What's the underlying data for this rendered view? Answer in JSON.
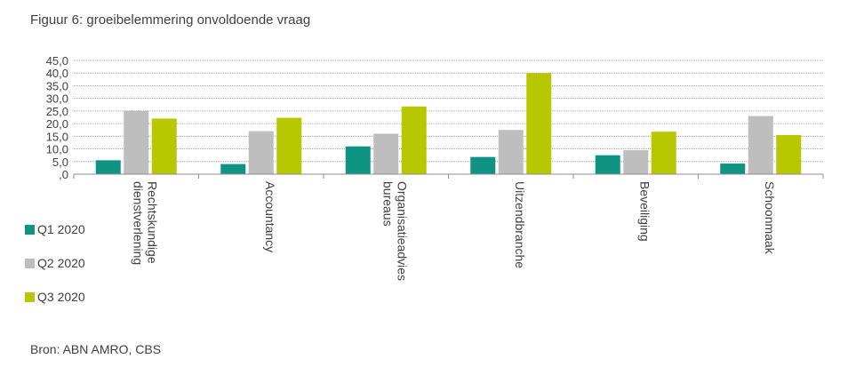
{
  "title": "Figuur 6: groeibelemmering onvoldoende vraag",
  "source": "Bron: ABN AMRO, CBS",
  "colors": {
    "q1": "#0f9484",
    "q2": "#bebebf",
    "q3": "#b7c700",
    "grid": "#a6a6a6",
    "axis": "#8c8c8c"
  },
  "chart_data": {
    "type": "bar",
    "title": "Figuur 6: groeibelemmering onvoldoende vraag",
    "xlabel": "",
    "ylabel": "",
    "ylim": [
      0,
      45
    ],
    "y_ticks": [
      "45,0",
      "40,0",
      "35,0",
      "30,0",
      "25,0",
      "20,0",
      "15,0",
      "10,0",
      "5,0",
      ",0"
    ],
    "categories": [
      [
        "Rechtskundige",
        "dienstverlening"
      ],
      [
        "Accountancy"
      ],
      [
        "Organisatieadvies",
        "bureaus"
      ],
      [
        "Uitzendbranche"
      ],
      [
        "Beveiliging"
      ],
      [
        "Schoonmaak"
      ]
    ],
    "series": [
      {
        "name": "Q1 2020",
        "color": "#0f9484",
        "values": [
          5.5,
          4.0,
          11.0,
          6.8,
          7.5,
          4.2
        ]
      },
      {
        "name": "Q2 2020",
        "color": "#bebebf",
        "values": [
          25.0,
          17.0,
          16.0,
          17.5,
          9.5,
          23.0
        ]
      },
      {
        "name": "Q3 2020",
        "color": "#b7c700",
        "values": [
          22.0,
          22.3,
          26.8,
          40.0,
          16.8,
          15.5
        ]
      }
    ],
    "grid": true,
    "legend_position": "bottom-left"
  }
}
